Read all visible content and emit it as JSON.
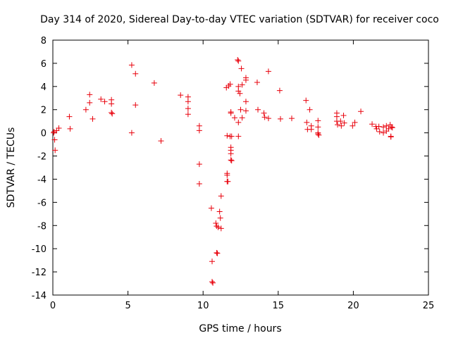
{
  "chart_data": {
    "type": "scatter",
    "title": "Day 314 of 2020, Sidereal Day-to-day VTEC variation (SDTVAR) for receiver coco",
    "xlabel": "GPS time / hours",
    "ylabel": "SDTVAR / TECUs",
    "xlim": [
      0,
      25
    ],
    "ylim": [
      -14,
      8
    ],
    "xticks": [
      "0",
      "5",
      "10",
      "15",
      "20",
      "25"
    ],
    "yticks": [
      "-14",
      "-12",
      "-10",
      "-8",
      "-6",
      "-4",
      "-2",
      "0",
      "2",
      "4",
      "6",
      "8"
    ],
    "grid": false,
    "marker": "+",
    "color": "#e8000b",
    "series": [
      {
        "name": "SDTVAR",
        "points": [
          [
            0.05,
            0.0
          ],
          [
            0.08,
            0.1
          ],
          [
            0.12,
            -0.6
          ],
          [
            0.15,
            -1.5
          ],
          [
            0.25,
            0.2
          ],
          [
            0.4,
            0.4
          ],
          [
            1.1,
            1.4
          ],
          [
            1.15,
            0.35
          ],
          [
            2.2,
            2.0
          ],
          [
            2.45,
            3.3
          ],
          [
            2.45,
            2.6
          ],
          [
            2.65,
            1.2
          ],
          [
            3.2,
            2.9
          ],
          [
            3.45,
            2.7
          ],
          [
            3.9,
            2.85
          ],
          [
            3.9,
            2.5
          ],
          [
            3.9,
            1.75
          ],
          [
            3.95,
            1.65
          ],
          [
            5.25,
            5.85
          ],
          [
            5.25,
            0.0
          ],
          [
            5.5,
            5.1
          ],
          [
            5.5,
            2.4
          ],
          [
            6.75,
            4.3
          ],
          [
            7.2,
            -0.7
          ],
          [
            8.5,
            3.25
          ],
          [
            9.0,
            3.1
          ],
          [
            9.0,
            2.7
          ],
          [
            9.0,
            2.1
          ],
          [
            9.0,
            1.6
          ],
          [
            9.75,
            0.6
          ],
          [
            9.75,
            0.2
          ],
          [
            9.75,
            -2.7
          ],
          [
            9.75,
            -4.4
          ],
          [
            10.55,
            -6.5
          ],
          [
            10.6,
            -11.1
          ],
          [
            10.6,
            -12.85
          ],
          [
            10.65,
            -12.95
          ],
          [
            10.85,
            -7.8
          ],
          [
            10.9,
            -8.05
          ],
          [
            10.9,
            -10.35
          ],
          [
            10.95,
            -10.4
          ],
          [
            11.0,
            -8.15
          ],
          [
            11.1,
            -6.8
          ],
          [
            11.15,
            -7.35
          ],
          [
            11.2,
            -8.25
          ],
          [
            11.2,
            -5.45
          ],
          [
            11.55,
            3.9
          ],
          [
            11.6,
            -0.25
          ],
          [
            11.6,
            -3.5
          ],
          [
            11.6,
            -3.65
          ],
          [
            11.6,
            -4.2
          ],
          [
            11.65,
            -4.2
          ],
          [
            11.7,
            4.05
          ],
          [
            11.8,
            4.2
          ],
          [
            11.8,
            -0.3
          ],
          [
            11.85,
            1.8
          ],
          [
            11.85,
            1.7
          ],
          [
            11.85,
            -1.25
          ],
          [
            11.85,
            -1.5
          ],
          [
            11.85,
            -1.8
          ],
          [
            11.85,
            -2.35
          ],
          [
            11.9,
            -2.4
          ],
          [
            11.9,
            -0.3
          ],
          [
            12.1,
            1.3
          ],
          [
            12.3,
            6.3
          ],
          [
            12.35,
            6.2
          ],
          [
            12.35,
            4.0
          ],
          [
            12.35,
            3.6
          ],
          [
            12.35,
            0.9
          ],
          [
            12.35,
            -0.3
          ],
          [
            12.45,
            3.4
          ],
          [
            12.5,
            2.0
          ],
          [
            12.55,
            5.55
          ],
          [
            12.6,
            4.15
          ],
          [
            12.6,
            1.3
          ],
          [
            12.85,
            4.75
          ],
          [
            12.85,
            4.55
          ],
          [
            12.85,
            2.7
          ],
          [
            12.85,
            1.9
          ],
          [
            13.6,
            4.35
          ],
          [
            13.65,
            2.0
          ],
          [
            14.05,
            1.7
          ],
          [
            14.1,
            1.35
          ],
          [
            14.35,
            5.3
          ],
          [
            14.35,
            1.25
          ],
          [
            15.1,
            3.65
          ],
          [
            15.15,
            1.2
          ],
          [
            15.9,
            1.25
          ],
          [
            16.85,
            2.8
          ],
          [
            16.9,
            0.9
          ],
          [
            16.95,
            0.3
          ],
          [
            17.1,
            2.0
          ],
          [
            17.2,
            0.6
          ],
          [
            17.2,
            0.3
          ],
          [
            17.65,
            1.05
          ],
          [
            17.65,
            0.5
          ],
          [
            17.65,
            0.0
          ],
          [
            17.65,
            -0.1
          ],
          [
            17.7,
            -0.2
          ],
          [
            18.9,
            1.7
          ],
          [
            18.9,
            1.4
          ],
          [
            18.9,
            1.0
          ],
          [
            18.95,
            0.7
          ],
          [
            19.15,
            1.0
          ],
          [
            19.2,
            0.6
          ],
          [
            19.35,
            1.5
          ],
          [
            19.4,
            0.85
          ],
          [
            19.95,
            0.6
          ],
          [
            20.1,
            0.9
          ],
          [
            20.5,
            1.85
          ],
          [
            21.25,
            0.75
          ],
          [
            21.5,
            0.55
          ],
          [
            21.55,
            0.35
          ],
          [
            21.7,
            0.55
          ],
          [
            21.75,
            0.1
          ],
          [
            22.0,
            0.5
          ],
          [
            22.0,
            0.0
          ],
          [
            22.2,
            0.6
          ],
          [
            22.2,
            0.15
          ],
          [
            22.35,
            0.35
          ],
          [
            22.45,
            0.7
          ],
          [
            22.5,
            -0.3
          ],
          [
            22.5,
            -0.35
          ],
          [
            22.55,
            0.5
          ],
          [
            22.6,
            0.45
          ]
        ]
      }
    ]
  }
}
